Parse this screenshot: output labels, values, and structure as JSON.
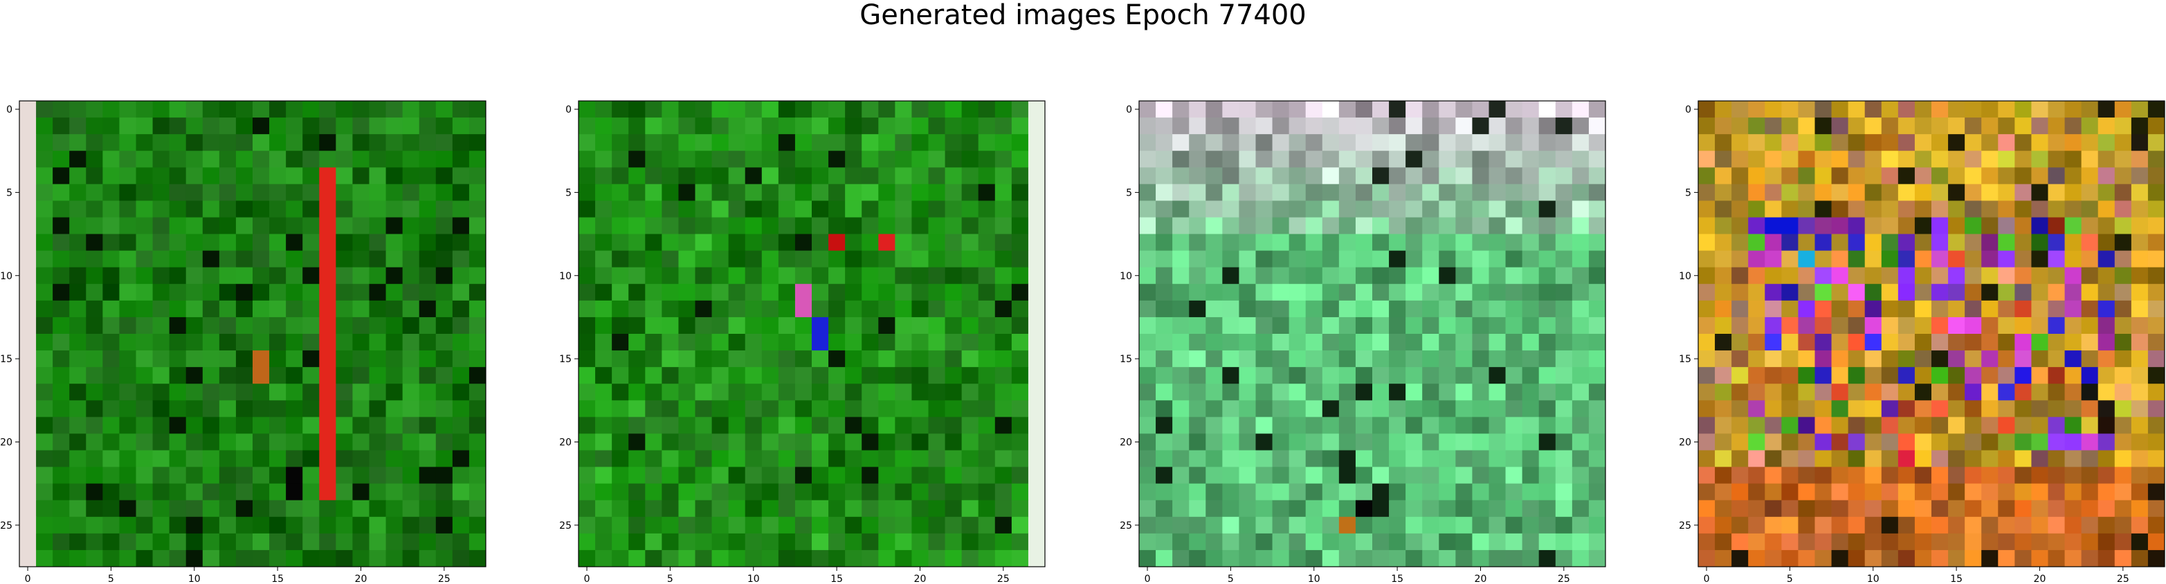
{
  "title": "Generated images Epoch 77400",
  "chart_data": [
    {
      "type": "heatmap",
      "title": "",
      "xlabel": "",
      "ylabel": "",
      "grid": false,
      "xlim": [
        -0.5,
        27.5
      ],
      "ylim": [
        27.5,
        -0.5
      ],
      "xticks": [
        0,
        5,
        10,
        15,
        20,
        25
      ],
      "yticks": [
        0,
        5,
        10,
        15,
        20,
        25
      ],
      "dominant_color": "#1a7a14",
      "highlights": [
        {
          "col": 18,
          "rows": [
            4,
            23
          ],
          "color": "#e3261c"
        },
        {
          "col": 0,
          "rows": [
            0,
            27
          ],
          "color": "#e8dcd8"
        },
        {
          "col": 14,
          "rows": [
            15,
            16
          ],
          "color": "#c0661a"
        },
        {
          "col": 16,
          "rows": [
            22,
            23
          ],
          "color": "#050505"
        }
      ]
    },
    {
      "type": "heatmap",
      "title": "",
      "xlabel": "",
      "ylabel": "",
      "grid": false,
      "xlim": [
        -0.5,
        27.5
      ],
      "ylim": [
        27.5,
        -0.5
      ],
      "xticks": [
        0,
        5,
        10,
        15,
        20,
        25
      ],
      "yticks": [
        0,
        5,
        10,
        15,
        20,
        25
      ],
      "dominant_color": "#1f8a18",
      "highlights": [
        {
          "col": 27,
          "rows": [
            0,
            27
          ],
          "color": "#e8f2e4"
        },
        {
          "col": 14,
          "rows": [
            13,
            14
          ],
          "color": "#1a22d8"
        },
        {
          "col": 13,
          "rows": [
            11,
            12
          ],
          "color": "#d858b8"
        },
        {
          "col": 15,
          "rows": [
            8,
            8
          ],
          "color": "#c81010"
        },
        {
          "col": 18,
          "rows": [
            8,
            8
          ],
          "color": "#e02020"
        }
      ]
    },
    {
      "type": "heatmap",
      "title": "",
      "xlabel": "",
      "ylabel": "",
      "grid": false,
      "xlim": [
        -0.5,
        27.5
      ],
      "ylim": [
        27.5,
        -0.5
      ],
      "xticks": [
        0,
        5,
        10,
        15,
        20,
        25
      ],
      "yticks": [
        0,
        5,
        10,
        15,
        20,
        25
      ],
      "dominant_color": "#5cc07a",
      "top_color": "#c8bcc8",
      "highlights": [
        {
          "col": 13,
          "rows": [
            24,
            24
          ],
          "color": "#050505"
        },
        {
          "col": 12,
          "rows": [
            25,
            25
          ],
          "color": "#c07018"
        }
      ]
    },
    {
      "type": "heatmap",
      "title": "",
      "xlabel": "",
      "ylabel": "",
      "grid": false,
      "xlim": [
        -0.5,
        27.5
      ],
      "ylim": [
        27.5,
        -0.5
      ],
      "xticks": [
        0,
        5,
        10,
        15,
        20,
        25
      ],
      "yticks": [
        0,
        5,
        10,
        15,
        20,
        25
      ],
      "dominant_color": "#c8a020",
      "palette": [
        "#c8a020",
        "#b88a30",
        "#2a20d0",
        "#c040c0",
        "#7a30d8",
        "#e05030",
        "#40a020",
        "#d87830"
      ],
      "bottom_color": "#d86020",
      "highlights": [
        {
          "col": 4,
          "rows": [
            7,
            7
          ],
          "color": "#0a14d8"
        },
        {
          "col": 5,
          "rows": [
            7,
            7
          ],
          "color": "#0a14d8"
        },
        {
          "col": 6,
          "rows": [
            9,
            9
          ],
          "color": "#18b0e0"
        },
        {
          "col": 12,
          "rows": [
            21,
            21
          ],
          "color": "#e02040"
        }
      ]
    }
  ]
}
